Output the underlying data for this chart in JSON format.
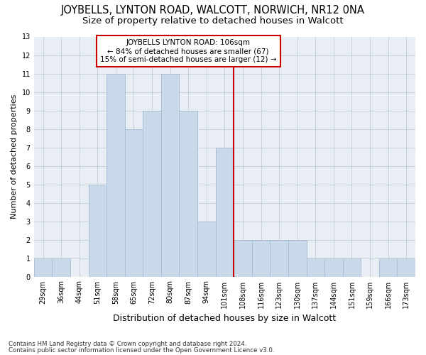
{
  "title": "JOYBELLS, LYNTON ROAD, WALCOTT, NORWICH, NR12 0NA",
  "subtitle": "Size of property relative to detached houses in Walcott",
  "xlabel": "Distribution of detached houses by size in Walcott",
  "ylabel": "Number of detached properties",
  "categories": [
    "29sqm",
    "36sqm",
    "44sqm",
    "51sqm",
    "58sqm",
    "65sqm",
    "72sqm",
    "80sqm",
    "87sqm",
    "94sqm",
    "101sqm",
    "108sqm",
    "116sqm",
    "123sqm",
    "130sqm",
    "137sqm",
    "144sqm",
    "151sqm",
    "159sqm",
    "166sqm",
    "173sqm"
  ],
  "values": [
    1,
    1,
    0,
    5,
    11,
    8,
    9,
    11,
    9,
    3,
    7,
    2,
    2,
    2,
    2,
    1,
    1,
    1,
    0,
    1,
    1
  ],
  "bar_color": "#c9d9ea",
  "bar_edgecolor": "#a8bfd4",
  "reference_label": "JOYBELLS LYNTON ROAD: 106sqm",
  "reference_line1": "← 84% of detached houses are smaller (67)",
  "reference_line2": "15% of semi-detached houses are larger (12) →",
  "box_edgecolor": "#cc0000",
  "line_color": "#cc0000",
  "ylim": [
    0,
    13
  ],
  "yticks": [
    0,
    1,
    2,
    3,
    4,
    5,
    6,
    7,
    8,
    9,
    10,
    11,
    12,
    13
  ],
  "footnote1": "Contains HM Land Registry data © Crown copyright and database right 2024.",
  "footnote2": "Contains public sector information licensed under the Open Government Licence v3.0.",
  "bg_color": "#ffffff",
  "ax_bg_color": "#e8eef4",
  "grid_color": "#c0cdd8",
  "title_fontsize": 10.5,
  "subtitle_fontsize": 9.5,
  "annotation_fontsize": 7.5,
  "tick_fontsize": 7,
  "ylabel_fontsize": 8,
  "xlabel_fontsize": 9
}
